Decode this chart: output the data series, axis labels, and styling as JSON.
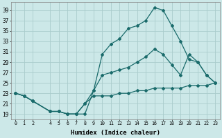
{
  "xlabel": "Humidex (Indice chaleur)",
  "background_color": "#cce8e8",
  "grid_color": "#aacccc",
  "line_color": "#1a6b6b",
  "x_ticks": [
    0,
    1,
    2,
    4,
    5,
    6,
    7,
    8,
    9,
    10,
    11,
    12,
    13,
    14,
    15,
    16,
    17,
    18,
    19,
    20,
    21,
    22,
    23
  ],
  "y_ticks": [
    19,
    21,
    23,
    25,
    27,
    29,
    31,
    33,
    35,
    37,
    39
  ],
  "ylim": [
    18.0,
    40.5
  ],
  "xlim": [
    -0.5,
    23.5
  ],
  "line1_x": [
    0,
    1,
    2,
    4,
    5,
    6,
    7,
    8,
    9,
    10,
    11,
    12,
    13,
    14,
    15,
    16,
    17,
    18,
    19,
    20,
    21,
    22,
    23
  ],
  "line1_y": [
    23,
    22.5,
    21.5,
    19.5,
    19.5,
    19.0,
    19.0,
    19.0,
    23.5,
    30.5,
    32.5,
    33.5,
    35.5,
    36.0,
    37.0,
    39.5,
    39.0,
    36.0,
    33.0,
    29.5,
    29.0,
    26.5,
    25.0
  ],
  "line2_x": [
    0,
    1,
    2,
    4,
    5,
    6,
    7,
    8,
    9,
    10,
    11,
    12,
    13,
    14,
    15,
    16,
    17,
    18,
    19,
    20,
    21,
    22,
    23
  ],
  "line2_y": [
    23,
    22.5,
    21.5,
    19.5,
    19.5,
    19.0,
    19.0,
    21.0,
    23.5,
    26.5,
    27.0,
    27.5,
    28.0,
    29.0,
    30.0,
    31.5,
    30.5,
    28.5,
    26.5,
    30.5,
    29.0,
    26.5,
    25.0
  ],
  "line3_x": [
    0,
    1,
    2,
    4,
    5,
    6,
    7,
    8,
    9,
    10,
    11,
    12,
    13,
    14,
    15,
    16,
    17,
    18,
    19,
    20,
    21,
    22,
    23
  ],
  "line3_y": [
    23,
    22.5,
    21.5,
    19.5,
    19.5,
    19.0,
    19.0,
    21.0,
    22.5,
    22.5,
    22.5,
    23.0,
    23.0,
    23.5,
    23.5,
    24.0,
    24.0,
    24.0,
    24.0,
    24.5,
    24.5,
    24.5,
    25.0
  ]
}
